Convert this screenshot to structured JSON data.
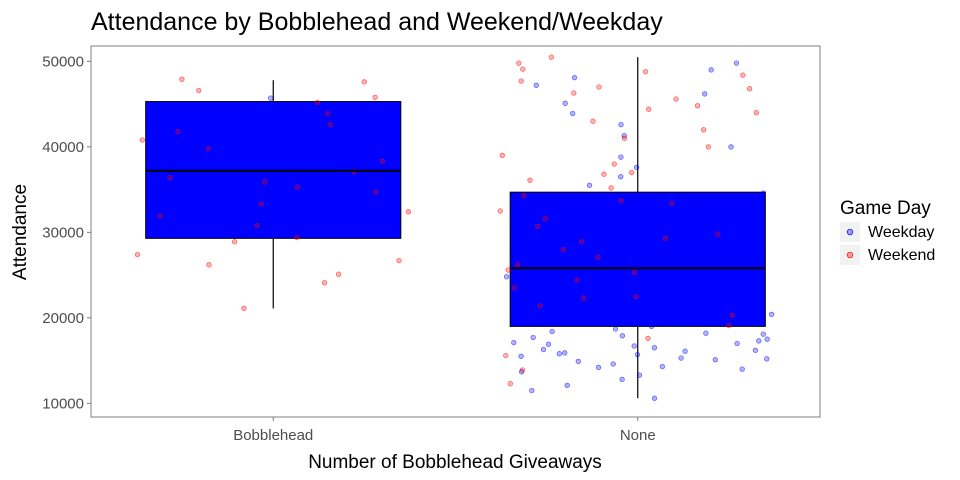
{
  "chart_data": {
    "type": "box",
    "title": "Attendance by Bobblehead and Weekend/Weekday",
    "xlabel": "Number of Bobblehead Giveaways",
    "ylabel": "Attendance",
    "categories": [
      "Bobblehead",
      "None"
    ],
    "ylim": [
      8400,
      51800
    ],
    "yticks": [
      10000,
      20000,
      30000,
      40000,
      50000
    ],
    "ytick_labels": [
      "10000",
      "20000",
      "30000",
      "40000",
      "50000"
    ],
    "grid": false,
    "legend": {
      "title": "Game Day",
      "position": "right",
      "entries": [
        {
          "name": "Weekday",
          "color": "#0000ff"
        },
        {
          "name": "Weekend",
          "color": "#ff0000"
        }
      ]
    },
    "boxes": [
      {
        "category": "Bobblehead",
        "whisker_low": 21100,
        "q1": 29300,
        "median": 37200,
        "q3": 45300,
        "whisker_high": 47800,
        "fill": "#0000ff"
      },
      {
        "category": "None",
        "whisker_low": 10600,
        "q1": 19000,
        "median": 25800,
        "q3": 34700,
        "whisker_high": 50500,
        "fill": "#0000ff"
      }
    ],
    "series": [
      {
        "name": "Weekday",
        "color": "#0000ff",
        "points": [
          {
            "x": "Bobblehead",
            "y": 45700
          },
          {
            "x": "None",
            "y": 10600
          },
          {
            "x": "None",
            "y": 11500
          },
          {
            "x": "None",
            "y": 12100
          },
          {
            "x": "None",
            "y": 12800
          },
          {
            "x": "None",
            "y": 13300
          },
          {
            "x": "None",
            "y": 13700
          },
          {
            "x": "None",
            "y": 14000
          },
          {
            "x": "None",
            "y": 14300
          },
          {
            "x": "None",
            "y": 14600
          },
          {
            "x": "None",
            "y": 14900
          },
          {
            "x": "None",
            "y": 15100
          },
          {
            "x": "None",
            "y": 15300
          },
          {
            "x": "None",
            "y": 15500
          },
          {
            "x": "None",
            "y": 15700
          },
          {
            "x": "None",
            "y": 15900
          },
          {
            "x": "None",
            "y": 16100
          },
          {
            "x": "None",
            "y": 16300
          },
          {
            "x": "None",
            "y": 16500
          },
          {
            "x": "None",
            "y": 16700
          },
          {
            "x": "None",
            "y": 16900
          },
          {
            "x": "None",
            "y": 17100
          },
          {
            "x": "None",
            "y": 17300
          },
          {
            "x": "None",
            "y": 17500
          },
          {
            "x": "None",
            "y": 17700
          },
          {
            "x": "None",
            "y": 17900
          },
          {
            "x": "None",
            "y": 18100
          },
          {
            "x": "None",
            "y": 18400
          },
          {
            "x": "None",
            "y": 18700
          },
          {
            "x": "None",
            "y": 19000
          },
          {
            "x": "None",
            "y": 19300
          },
          {
            "x": "None",
            "y": 19600
          },
          {
            "x": "None",
            "y": 20000
          },
          {
            "x": "None",
            "y": 20400
          },
          {
            "x": "None",
            "y": 20800
          },
          {
            "x": "None",
            "y": 21200
          },
          {
            "x": "None",
            "y": 21600
          },
          {
            "x": "None",
            "y": 22000
          },
          {
            "x": "None",
            "y": 22400
          },
          {
            "x": "None",
            "y": 22800
          },
          {
            "x": "None",
            "y": 23200
          },
          {
            "x": "None",
            "y": 23600
          },
          {
            "x": "None",
            "y": 24000
          },
          {
            "x": "None",
            "y": 24500
          },
          {
            "x": "None",
            "y": 25000
          },
          {
            "x": "None",
            "y": 25500
          },
          {
            "x": "None",
            "y": 26000
          },
          {
            "x": "None",
            "y": 26500
          },
          {
            "x": "None",
            "y": 27000
          },
          {
            "x": "None",
            "y": 27500
          },
          {
            "x": "None",
            "y": 28000
          },
          {
            "x": "None",
            "y": 28600
          },
          {
            "x": "None",
            "y": 29200
          },
          {
            "x": "None",
            "y": 29800
          },
          {
            "x": "None",
            "y": 30400
          },
          {
            "x": "None",
            "y": 31000
          },
          {
            "x": "None",
            "y": 31700
          },
          {
            "x": "None",
            "y": 32400
          },
          {
            "x": "None",
            "y": 33100
          },
          {
            "x": "None",
            "y": 33800
          },
          {
            "x": "None",
            "y": 34600
          },
          {
            "x": "None",
            "y": 35500
          },
          {
            "x": "None",
            "y": 36500
          },
          {
            "x": "None",
            "y": 37600
          },
          {
            "x": "None",
            "y": 38800
          },
          {
            "x": "None",
            "y": 40000
          },
          {
            "x": "None",
            "y": 41300
          },
          {
            "x": "None",
            "y": 42600
          },
          {
            "x": "None",
            "y": 43900
          },
          {
            "x": "None",
            "y": 45100
          },
          {
            "x": "None",
            "y": 46200
          },
          {
            "x": "None",
            "y": 47200
          },
          {
            "x": "None",
            "y": 48100
          },
          {
            "x": "None",
            "y": 49000
          },
          {
            "x": "None",
            "y": 49800
          },
          {
            "x": "None",
            "y": 15200
          },
          {
            "x": "None",
            "y": 16200
          },
          {
            "x": "None",
            "y": 17000
          },
          {
            "x": "None",
            "y": 18200
          },
          {
            "x": "None",
            "y": 20600
          },
          {
            "x": "None",
            "y": 22600
          },
          {
            "x": "None",
            "y": 24800
          },
          {
            "x": "None",
            "y": 27800
          },
          {
            "x": "None",
            "y": 14200
          },
          {
            "x": "None",
            "y": 15800
          }
        ]
      },
      {
        "name": "Weekend",
        "color": "#ff0000",
        "points": [
          {
            "x": "Bobblehead",
            "y": 21100
          },
          {
            "x": "Bobblehead",
            "y": 24100
          },
          {
            "x": "Bobblehead",
            "y": 25100
          },
          {
            "x": "Bobblehead",
            "y": 26200
          },
          {
            "x": "Bobblehead",
            "y": 26700
          },
          {
            "x": "Bobblehead",
            "y": 27400
          },
          {
            "x": "Bobblehead",
            "y": 28900
          },
          {
            "x": "Bobblehead",
            "y": 29400
          },
          {
            "x": "Bobblehead",
            "y": 30800
          },
          {
            "x": "Bobblehead",
            "y": 31900
          },
          {
            "x": "Bobblehead",
            "y": 32400
          },
          {
            "x": "Bobblehead",
            "y": 33300
          },
          {
            "x": "Bobblehead",
            "y": 34700
          },
          {
            "x": "Bobblehead",
            "y": 35300
          },
          {
            "x": "Bobblehead",
            "y": 35900
          },
          {
            "x": "Bobblehead",
            "y": 36400
          },
          {
            "x": "Bobblehead",
            "y": 37100
          },
          {
            "x": "Bobblehead",
            "y": 38300
          },
          {
            "x": "Bobblehead",
            "y": 39800
          },
          {
            "x": "Bobblehead",
            "y": 40800
          },
          {
            "x": "Bobblehead",
            "y": 41800
          },
          {
            "x": "Bobblehead",
            "y": 42600
          },
          {
            "x": "Bobblehead",
            "y": 43900
          },
          {
            "x": "Bobblehead",
            "y": 45200
          },
          {
            "x": "Bobblehead",
            "y": 45800
          },
          {
            "x": "Bobblehead",
            "y": 46600
          },
          {
            "x": "Bobblehead",
            "y": 47600
          },
          {
            "x": "Bobblehead",
            "y": 47900
          },
          {
            "x": "None",
            "y": 12300
          },
          {
            "x": "None",
            "y": 13900
          },
          {
            "x": "None",
            "y": 15600
          },
          {
            "x": "None",
            "y": 17600
          },
          {
            "x": "None",
            "y": 19100
          },
          {
            "x": "None",
            "y": 20300
          },
          {
            "x": "None",
            "y": 21400
          },
          {
            "x": "None",
            "y": 22500
          },
          {
            "x": "None",
            "y": 23500
          },
          {
            "x": "None",
            "y": 24400
          },
          {
            "x": "None",
            "y": 25300
          },
          {
            "x": "None",
            "y": 26200
          },
          {
            "x": "None",
            "y": 27100
          },
          {
            "x": "None",
            "y": 28000
          },
          {
            "x": "None",
            "y": 28900
          },
          {
            "x": "None",
            "y": 29800
          },
          {
            "x": "None",
            "y": 30700
          },
          {
            "x": "None",
            "y": 31600
          },
          {
            "x": "None",
            "y": 32500
          },
          {
            "x": "None",
            "y": 33400
          },
          {
            "x": "None",
            "y": 34300
          },
          {
            "x": "None",
            "y": 35200
          },
          {
            "x": "None",
            "y": 36100
          },
          {
            "x": "None",
            "y": 37000
          },
          {
            "x": "None",
            "y": 38000
          },
          {
            "x": "None",
            "y": 39000
          },
          {
            "x": "None",
            "y": 40000
          },
          {
            "x": "None",
            "y": 41000
          },
          {
            "x": "None",
            "y": 42000
          },
          {
            "x": "None",
            "y": 43000
          },
          {
            "x": "None",
            "y": 44000
          },
          {
            "x": "None",
            "y": 44800
          },
          {
            "x": "None",
            "y": 45600
          },
          {
            "x": "None",
            "y": 46300
          },
          {
            "x": "None",
            "y": 47000
          },
          {
            "x": "None",
            "y": 47700
          },
          {
            "x": "None",
            "y": 48400
          },
          {
            "x": "None",
            "y": 49100
          },
          {
            "x": "None",
            "y": 49800
          },
          {
            "x": "None",
            "y": 50500
          },
          {
            "x": "None",
            "y": 22300
          },
          {
            "x": "None",
            "y": 25600
          },
          {
            "x": "None",
            "y": 29300
          },
          {
            "x": "None",
            "y": 33700
          },
          {
            "x": "None",
            "y": 36800
          },
          {
            "x": "None",
            "y": 44400
          },
          {
            "x": "None",
            "y": 46800
          },
          {
            "x": "None",
            "y": 48800
          }
        ]
      }
    ]
  }
}
